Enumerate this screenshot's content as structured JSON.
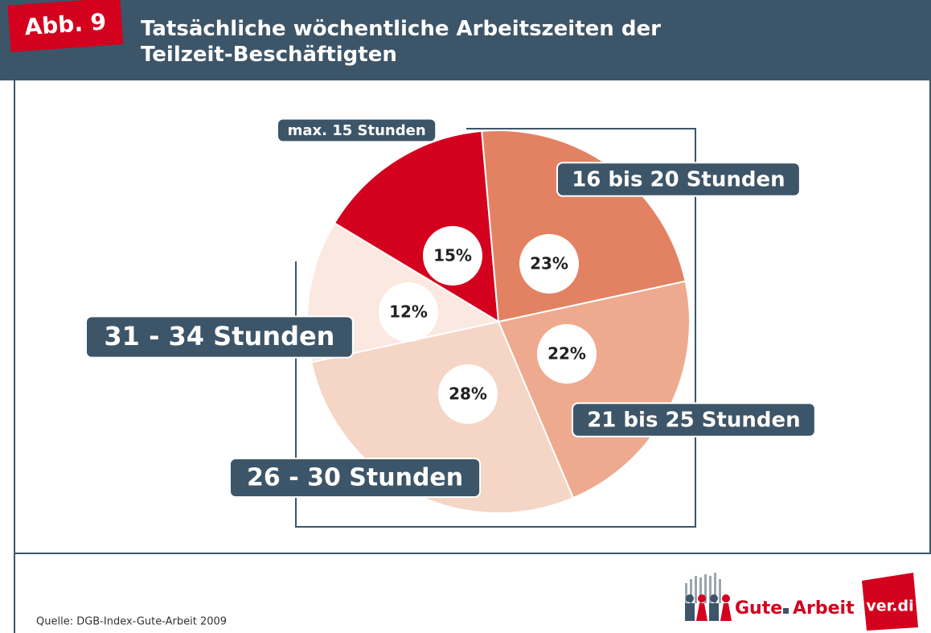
{
  "badge": "Abb. 9",
  "chart_data": {
    "type": "pie",
    "title": "Tatsächliche wöchentliche Arbeitszeiten der Teilzeit-Beschäftigten",
    "categories": [
      "max. 15 Stunden",
      "16 bis 20 Stunden",
      "21 bis 25 Stunden",
      "26 - 30 Stunden",
      "31 - 34 Stunden"
    ],
    "values": [
      15,
      23,
      22,
      28,
      12
    ],
    "value_labels": [
      "15%",
      "23%",
      "22%",
      "28%",
      "12%"
    ],
    "colors": [
      "#d3001e",
      "#e38262",
      "#eeaa8f",
      "#f5d5c6",
      "#fbe8e0"
    ]
  },
  "source": "Quelle: DGB-Index-Gute-Arbeit 2009",
  "logo": {
    "word1": "Gute",
    "word2": "Arbeit",
    "brand": "ver.di"
  }
}
